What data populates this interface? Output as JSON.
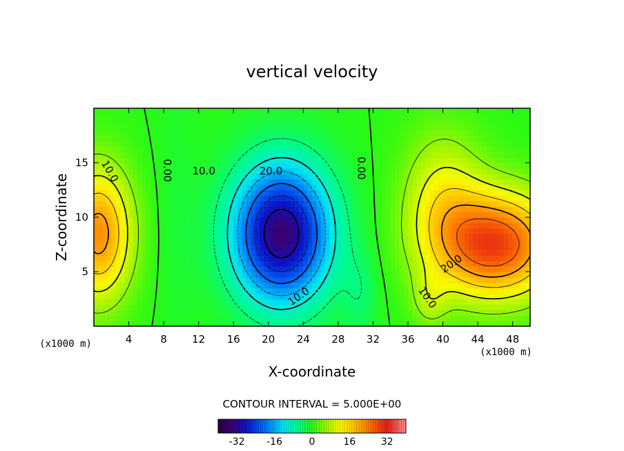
{
  "chart_data": {
    "type": "heatmap",
    "title": "vertical velocity",
    "xlabel": "X-coordinate",
    "ylabel": "Z-coordinate",
    "x_unit_left": "(x1000 m)",
    "x_unit_right": "(x1000 m)",
    "xlim": [
      0,
      50
    ],
    "ylim": [
      0,
      20
    ],
    "x_ticks": [
      4,
      8,
      12,
      16,
      20,
      24,
      28,
      32,
      36,
      40,
      44,
      48
    ],
    "y_ticks": [
      5,
      10,
      15
    ],
    "contour_interval_text": "CONTOUR INTERVAL = 5.000E+00",
    "contour_labels": [
      {
        "text": "10.0",
        "x": 1.8,
        "z": 14.2
      },
      {
        "text": "0.00",
        "x": 8.4,
        "z": 14.3
      },
      {
        "text": "10.0",
        "x": 12.6,
        "z": 14.2
      },
      {
        "text": "20.0",
        "x": 20.3,
        "z": 14.2
      },
      {
        "text": "0.00",
        "x": 30.6,
        "z": 14.5
      },
      {
        "text": "20.0",
        "x": 41.0,
        "z": 5.7
      },
      {
        "text": "10.0",
        "x": 38.2,
        "z": 2.6
      },
      {
        "text": "10.0",
        "x": 23.5,
        "z": 2.7
      }
    ],
    "features": [
      {
        "kind": "updraft",
        "center_x": 0.5,
        "center_z": 8.5,
        "peak": 22
      },
      {
        "kind": "downdraft",
        "center_x": 21.5,
        "center_z": 8.5,
        "peak": -33
      },
      {
        "kind": "updraft",
        "center_x": 46.0,
        "center_z": 7.5,
        "peak": 28
      }
    ],
    "colorbar": {
      "range": [
        -40,
        40
      ],
      "ticks": [
        -32,
        -16,
        0,
        16,
        32
      ],
      "tick_labels": [
        "-32",
        "-16",
        "0",
        "16",
        "32"
      ],
      "colormap": "rainbow"
    },
    "colors": {
      "min": "#3a0a5c",
      "low": "#0a1ed8",
      "mid": "#00ff00",
      "high": "#ff7f00",
      "max": "#c01010"
    }
  }
}
